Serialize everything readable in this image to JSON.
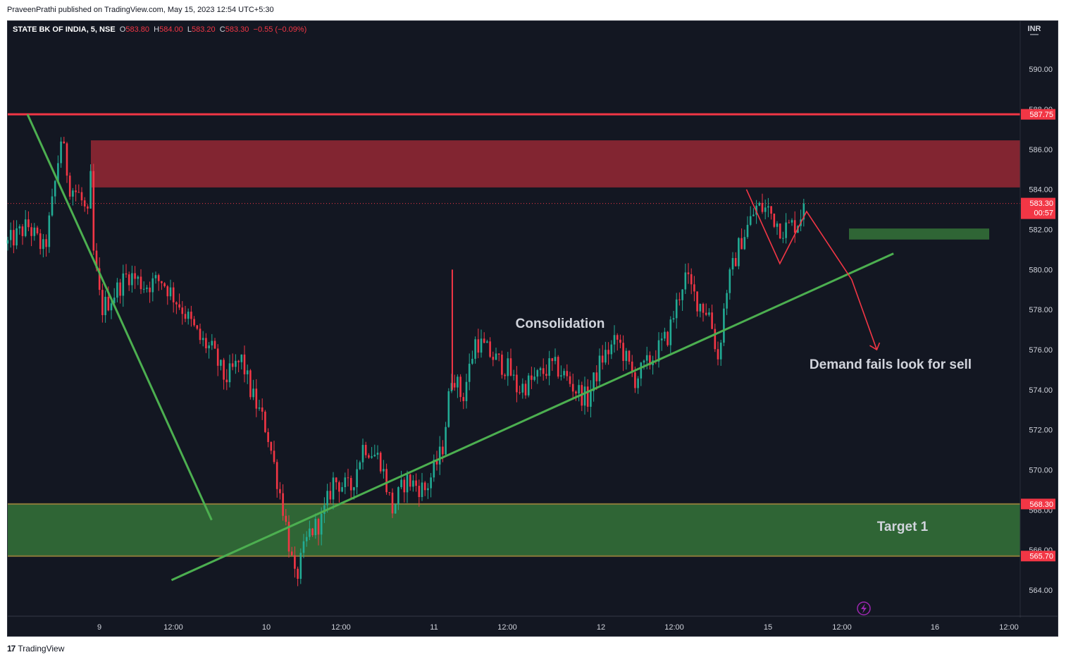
{
  "publisher_line": "PraveenPrathi published on TradingView.com, May 15, 2023 12:54 UTC+5:30",
  "footer": {
    "logo": "17",
    "brand": "TradingView"
  },
  "chart_data": {
    "type": "candlestick",
    "symbol_header": {
      "symbol": "STATE BK OF INDIA, 5, NSE",
      "o_label": "O",
      "o_value": "583.80",
      "h_label": "H",
      "h_value": "584.00",
      "l_label": "L",
      "l_value": "583.20",
      "c_label": "C",
      "c_value": "583.30",
      "change": "−0.55 (−0.09%)"
    },
    "currency": "INR",
    "y_ticks": [
      "590.00",
      "588.00",
      "586.00",
      "584.00",
      "582.00",
      "580.00",
      "578.00",
      "576.00",
      "574.00",
      "572.00",
      "570.00",
      "568.00",
      "566.00",
      "564.00"
    ],
    "x_ticks": [
      "9",
      "12:00",
      "10",
      "12:00",
      "11",
      "12:00",
      "12",
      "12:00",
      "15",
      "12:00",
      "16",
      "12:00"
    ],
    "ylim": [
      562.7,
      592.4
    ],
    "price_labels": [
      {
        "value": "587.75",
        "color": "#f23645"
      },
      {
        "value": "583.30",
        "sub": "00:57",
        "color": "#f23645"
      },
      {
        "value": "568.30",
        "color": "#f23645"
      },
      {
        "value": "565.70",
        "color": "#f23645"
      }
    ],
    "annotations": [
      {
        "text": "Consolidation",
        "price": 578.0
      },
      {
        "text": "Demand fails look for sell",
        "price": 575.0
      },
      {
        "text": "Target 1",
        "price": 567.0
      }
    ],
    "zones": [
      {
        "name": "supply",
        "from": 584.1,
        "to": 586.45,
        "color": "#822531"
      },
      {
        "name": "target",
        "from": 565.7,
        "to": 568.3,
        "color": "#2f6535"
      },
      {
        "name": "small-demand",
        "from": 581.5,
        "to": 582.05,
        "color": "#2f6535"
      }
    ],
    "levels": [
      {
        "name": "resistance",
        "value": 587.75,
        "color": "#f23645"
      },
      {
        "name": "last-price",
        "value": 583.3,
        "color": "#f23645"
      }
    ],
    "trendlines": [
      {
        "name": "descending",
        "from": [
          0.118,
          587.75
        ],
        "to": [
          1.22,
          567.5
        ],
        "color": "#4caf50"
      },
      {
        "name": "ascending",
        "from": [
          0.98,
          564.5
        ],
        "to": [
          5.3,
          580.8
        ],
        "color": "#4caf50"
      }
    ],
    "projection": {
      "points": [
        [
          4.42,
          584.0
        ],
        [
          4.62,
          580.3
        ],
        [
          4.78,
          582.9
        ],
        [
          5.05,
          579.5
        ],
        [
          5.2,
          576.0
        ]
      ],
      "color": "#f23645"
    },
    "anchors": [
      {
        "t": 0.0,
        "p": 581.3
      },
      {
        "t": 0.12,
        "p": 582.2
      },
      {
        "t": 0.22,
        "p": 580.9
      },
      {
        "t": 0.27,
        "p": 583.5
      },
      {
        "t": 0.32,
        "p": 586.6
      },
      {
        "t": 0.37,
        "p": 584.2
      },
      {
        "t": 0.43,
        "p": 583.7
      },
      {
        "t": 0.48,
        "p": 582.5
      },
      {
        "t": 0.5,
        "p": 585.0
      },
      {
        "t": 0.51,
        "p": 581.0
      },
      {
        "t": 0.56,
        "p": 578.0
      },
      {
        "t": 0.62,
        "p": 578.6
      },
      {
        "t": 0.72,
        "p": 579.8
      },
      {
        "t": 0.82,
        "p": 579.2
      },
      {
        "t": 0.92,
        "p": 579.5
      },
      {
        "t": 1.05,
        "p": 578.0
      },
      {
        "t": 1.15,
        "p": 576.5
      },
      {
        "t": 1.22,
        "p": 576.0
      },
      {
        "t": 1.3,
        "p": 574.5
      },
      {
        "t": 1.4,
        "p": 575.5
      },
      {
        "t": 1.45,
        "p": 574.0
      },
      {
        "t": 1.55,
        "p": 572.0
      },
      {
        "t": 1.65,
        "p": 568.0
      },
      {
        "t": 1.72,
        "p": 564.4
      },
      {
        "t": 1.8,
        "p": 566.8
      },
      {
        "t": 1.88,
        "p": 567.5
      },
      {
        "t": 1.95,
        "p": 569.5
      },
      {
        "t": 2.05,
        "p": 569.0
      },
      {
        "t": 2.13,
        "p": 571.3
      },
      {
        "t": 2.23,
        "p": 570.5
      },
      {
        "t": 2.3,
        "p": 568.0
      },
      {
        "t": 2.38,
        "p": 569.5
      },
      {
        "t": 2.5,
        "p": 569.0
      },
      {
        "t": 2.6,
        "p": 571.0
      },
      {
        "t": 2.66,
        "p": 575.0
      },
      {
        "t": 2.72,
        "p": 573.5
      },
      {
        "t": 2.8,
        "p": 576.5
      },
      {
        "t": 2.92,
        "p": 575.5
      },
      {
        "t": 3.0,
        "p": 575.0
      },
      {
        "t": 3.05,
        "p": 574.0
      },
      {
        "t": 3.15,
        "p": 574.5
      },
      {
        "t": 3.25,
        "p": 575.2
      },
      {
        "t": 3.3,
        "p": 575.0
      },
      {
        "t": 3.4,
        "p": 574.0
      },
      {
        "t": 3.47,
        "p": 573.5
      },
      {
        "t": 3.55,
        "p": 575.5
      },
      {
        "t": 3.65,
        "p": 576.5
      },
      {
        "t": 3.75,
        "p": 574.5
      },
      {
        "t": 3.85,
        "p": 575.5
      },
      {
        "t": 3.95,
        "p": 576.7
      },
      {
        "t": 4.05,
        "p": 579.7
      },
      {
        "t": 4.12,
        "p": 578.5
      },
      {
        "t": 4.2,
        "p": 577.8
      },
      {
        "t": 4.25,
        "p": 575.5
      },
      {
        "t": 4.3,
        "p": 579.0
      },
      {
        "t": 4.38,
        "p": 581.3
      },
      {
        "t": 4.48,
        "p": 583.1
      },
      {
        "t": 4.55,
        "p": 583.0
      },
      {
        "t": 4.63,
        "p": 582.0
      },
      {
        "t": 4.72,
        "p": 582.3
      },
      {
        "t": 4.78,
        "p": 583.3
      }
    ],
    "spikes": [
      {
        "t": 2.66,
        "high": 580.0,
        "low": 574.0
      }
    ]
  }
}
